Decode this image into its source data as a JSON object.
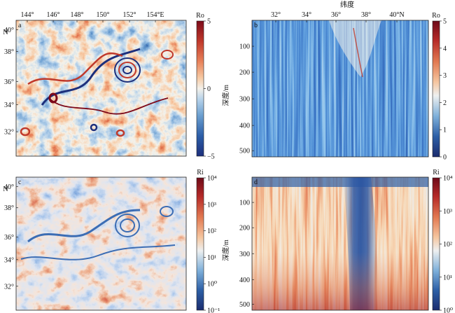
{
  "figure": {
    "panels": [
      {
        "id": "a",
        "label": "a",
        "type": "map",
        "variable": "Ro",
        "top_ticks": [
          "144°",
          "146°",
          "148°",
          "150°",
          "152°",
          "154°E"
        ],
        "left_ticks": [
          "40°",
          "38°",
          "36°",
          "34°",
          "32°"
        ],
        "left_unit": "N",
        "colorbar": {
          "title": "Ro",
          "ticks": [
            "5",
            "0",
            "−5"
          ],
          "scale": "linear",
          "range": [
            -5,
            5
          ]
        }
      },
      {
        "id": "b",
        "label": "b",
        "type": "section",
        "variable": "Ro",
        "top_title": "纬度",
        "top_ticks": [
          "32°",
          "34°",
          "36°",
          "38°",
          "40°N"
        ],
        "left_ticks": [
          "100",
          "200",
          "300",
          "400",
          "500"
        ],
        "ylabel": "深度/m",
        "colorbar": {
          "title": "Ro",
          "ticks": [
            "5",
            "4",
            "3",
            "2",
            "1",
            "0"
          ],
          "scale": "linear",
          "range": [
            0,
            5
          ]
        }
      },
      {
        "id": "c",
        "label": "c",
        "type": "map",
        "variable": "Ri",
        "left_ticks": [
          "40°",
          "38°",
          "36°",
          "34°",
          "32°"
        ],
        "left_unit": "N",
        "colorbar": {
          "title": "Ri",
          "ticks": [
            "10⁴",
            "10³",
            "10²",
            "10¹",
            "10⁰",
            "10⁻¹"
          ],
          "scale": "log",
          "range": [
            -1,
            4
          ]
        }
      },
      {
        "id": "d",
        "label": "d",
        "type": "section",
        "variable": "Ri",
        "left_ticks": [
          "100",
          "200",
          "300",
          "400",
          "500"
        ],
        "ylabel": "深度/m",
        "colorbar": {
          "title": "Ri",
          "ticks": [
            "10⁴",
            "10³",
            "10²",
            "10¹",
            "10⁰"
          ],
          "scale": "log",
          "range": [
            0,
            4
          ]
        }
      }
    ]
  },
  "colors": {
    "diverging": [
      "#1d2f7c",
      "#2c5ea8",
      "#6b9fd0",
      "#b6d2ea",
      "#f4f1ea",
      "#f6c9a3",
      "#e8825a",
      "#c0392b",
      "#7d0a1a"
    ],
    "sequential_blue_red": [
      "#1b2c6e",
      "#2d5fa6",
      "#7fb0da",
      "#eef0f0",
      "#f5c6a0",
      "#e27a52",
      "#b52a28",
      "#6e0a18"
    ]
  }
}
